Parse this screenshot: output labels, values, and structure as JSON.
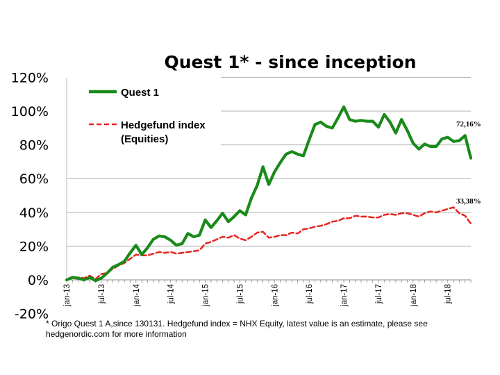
{
  "chart_data": {
    "type": "line",
    "title": "Quest 1* - since inception",
    "yticks": [
      "120%",
      "100%",
      "80%",
      "60%",
      "40%",
      "20%",
      "0%",
      "-20%"
    ],
    "ylim": [
      -20,
      120
    ],
    "grid": "horizontal",
    "legend_placement": "top-left",
    "xticks": [
      "jan-13",
      "jul-13",
      "jan-14",
      "jul-14",
      "jan-15",
      "jul-15",
      "jan-16",
      "jul-16",
      "jan-17",
      "jul-17",
      "jan-18",
      "jul-18"
    ],
    "series": [
      {
        "name": "Quest 1",
        "color": "#1a8a1a",
        "style": "solid",
        "values": [
          0,
          1.5,
          1,
          0,
          1.5,
          -0.5,
          1,
          4,
          7.5,
          9,
          11,
          16,
          20.5,
          15,
          19,
          24,
          26,
          25.5,
          23.5,
          20.5,
          21.5,
          27.5,
          25.5,
          26.5,
          35.5,
          31,
          35,
          39.5,
          34.5,
          37.5,
          41,
          38.5,
          48.5,
          56,
          67,
          56.5,
          64,
          69.5,
          74.5,
          76,
          74.5,
          73.5,
          83,
          92,
          93.5,
          91,
          90,
          96,
          102.5,
          95,
          94,
          94.5,
          94,
          94,
          90.5,
          98,
          93.5,
          87,
          95,
          88.5,
          81,
          77.5,
          80.5,
          79,
          79,
          83.5,
          84.5,
          82,
          82.5,
          85.5,
          72.16
        ]
      },
      {
        "name": "Hedgefund index (Equities)",
        "color": "#e8231f",
        "style": "dashed",
        "values": [
          0,
          1,
          1.5,
          1,
          2.5,
          0.5,
          3.5,
          4,
          6.5,
          8.5,
          10,
          12.5,
          15,
          14.5,
          14.5,
          15.5,
          16.5,
          16,
          16.5,
          15.5,
          16,
          16.5,
          17,
          17.5,
          21.5,
          22.5,
          24,
          25.5,
          25,
          26.5,
          24.5,
          23.5,
          25.5,
          28,
          28.5,
          25,
          25.5,
          26.5,
          26.5,
          28,
          27.5,
          30,
          30.5,
          31.5,
          32,
          33,
          34.5,
          35,
          36.5,
          36.5,
          38,
          37.5,
          37.5,
          37,
          37,
          38.5,
          39,
          38.5,
          39.5,
          39.5,
          38.5,
          37.5,
          39.5,
          40.5,
          40,
          41,
          42,
          43,
          39.5,
          38,
          33.38
        ]
      }
    ],
    "end_labels": [
      "72,16%",
      "33,38%"
    ],
    "footnote": "* Origo Quest 1 A,since 130131. Hedgefund index = NHX Equity, latest value is an estimate, please see hedgenordic.com for more information"
  }
}
